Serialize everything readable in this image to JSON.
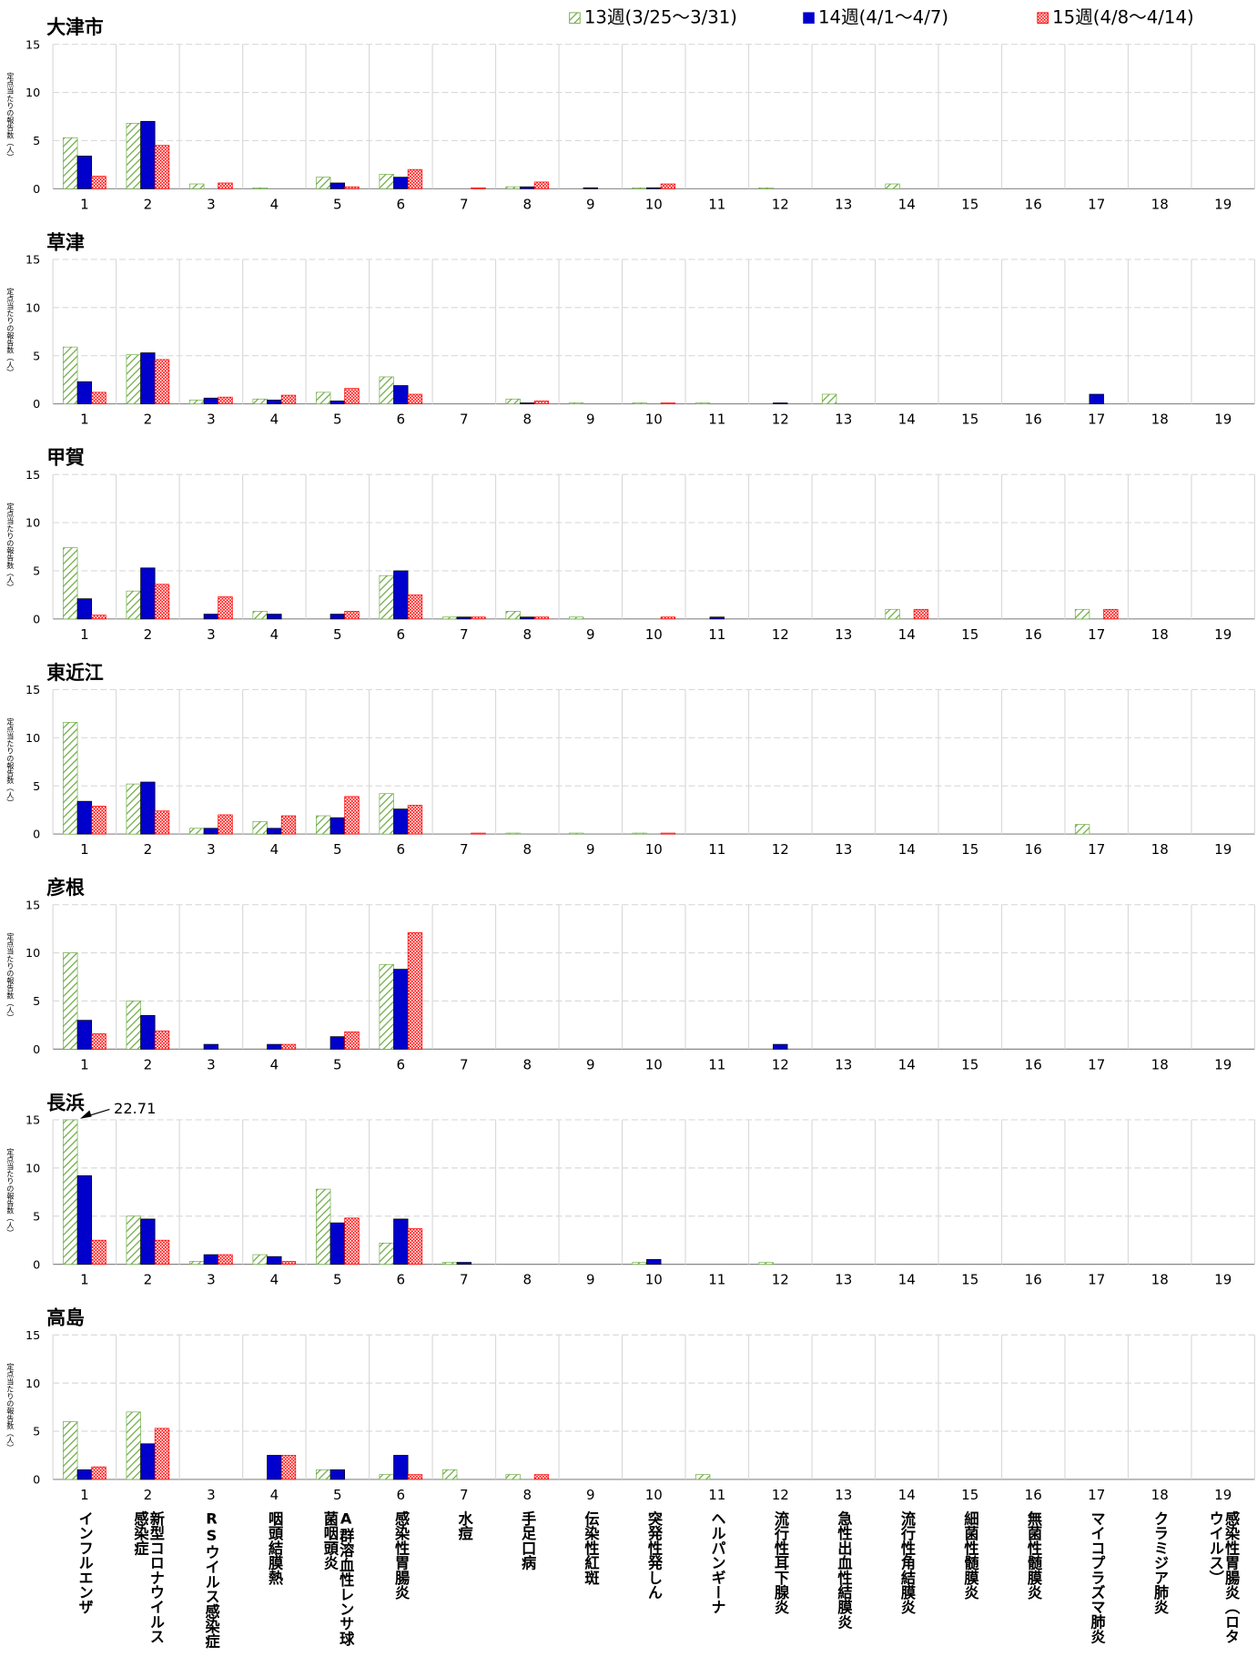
{
  "chart_data": [
    {
      "type": "bar",
      "title": "大津市",
      "y_label": "定点当たりの報告数（人）",
      "categories": [
        "1",
        "2",
        "3",
        "4",
        "5",
        "6",
        "7",
        "8",
        "9",
        "10",
        "11",
        "12",
        "13",
        "14",
        "15",
        "16",
        "17",
        "18",
        "19"
      ],
      "series": [
        {
          "name": "13週(3/25～3/31)",
          "color": "#70ad47",
          "pattern": "hatch",
          "values": [
            5.3,
            6.8,
            0.5,
            0.1,
            1.2,
            1.5,
            0,
            0.2,
            0,
            0.1,
            0,
            0.1,
            0,
            0.5,
            0,
            0,
            0,
            0,
            0
          ]
        },
        {
          "name": "14週(4/1～4/7)",
          "color": "#0000cc",
          "pattern": "solid",
          "values": [
            3.4,
            7.0,
            0,
            0,
            0.6,
            1.2,
            0,
            0.2,
            0.1,
            0.1,
            0,
            0,
            0,
            0,
            0,
            0,
            0,
            0,
            0
          ]
        },
        {
          "name": "15週(4/8～4/14)",
          "color": "#ff0000",
          "pattern": "check",
          "values": [
            1.3,
            4.5,
            0.6,
            0,
            0.2,
            2.0,
            0.1,
            0.7,
            0,
            0.5,
            0,
            0,
            0,
            0,
            0,
            0,
            0,
            0,
            0
          ]
        }
      ],
      "ylim": [
        0,
        15
      ],
      "yticks": [
        0,
        5,
        10,
        15
      ],
      "grid": true,
      "legend": "top"
    },
    {
      "type": "bar",
      "title": "草津",
      "y_label": "定点当たりの報告数（人）",
      "categories": [
        "1",
        "2",
        "3",
        "4",
        "5",
        "6",
        "7",
        "8",
        "9",
        "10",
        "11",
        "12",
        "13",
        "14",
        "15",
        "16",
        "17",
        "18",
        "19"
      ],
      "series": [
        {
          "values": [
            5.9,
            5.1,
            0.4,
            0.5,
            1.2,
            2.8,
            0,
            0.5,
            0.1,
            0.1,
            0.1,
            0,
            1.0,
            0,
            0,
            0,
            0,
            0,
            0
          ]
        },
        {
          "values": [
            2.3,
            5.3,
            0.6,
            0.4,
            0.3,
            1.9,
            0,
            0.1,
            0,
            0,
            0,
            0.1,
            0,
            0,
            0,
            0,
            1.0,
            0,
            0
          ]
        },
        {
          "values": [
            1.2,
            4.6,
            0.7,
            0.9,
            1.6,
            1.0,
            0,
            0.3,
            0,
            0.1,
            0,
            0,
            0,
            0,
            0,
            0,
            0,
            0,
            0
          ]
        }
      ],
      "ylim": [
        0,
        15
      ],
      "yticks": [
        0,
        5,
        10,
        15
      ],
      "grid": true
    },
    {
      "type": "bar",
      "title": "甲賀",
      "y_label": "定点当たりの報告数（人）",
      "categories": [
        "1",
        "2",
        "3",
        "4",
        "5",
        "6",
        "7",
        "8",
        "9",
        "10",
        "11",
        "12",
        "13",
        "14",
        "15",
        "16",
        "17",
        "18",
        "19"
      ],
      "series": [
        {
          "values": [
            7.4,
            2.9,
            0,
            0.8,
            0,
            4.5,
            0.2,
            0.8,
            0.2,
            0,
            0,
            0,
            0,
            1.0,
            0,
            0,
            1.0,
            0,
            0
          ]
        },
        {
          "values": [
            2.1,
            5.3,
            0.5,
            0.5,
            0.5,
            5.0,
            0.2,
            0.2,
            0,
            0,
            0.2,
            0,
            0,
            0,
            0,
            0,
            0,
            0,
            0
          ]
        },
        {
          "values": [
            0.4,
            3.6,
            2.3,
            0,
            0.8,
            2.5,
            0.2,
            0.2,
            0,
            0.2,
            0,
            0,
            0,
            1.0,
            0,
            0,
            1.0,
            0,
            0
          ]
        }
      ],
      "ylim": [
        0,
        15
      ],
      "yticks": [
        0,
        5,
        10,
        15
      ],
      "grid": true
    },
    {
      "type": "bar",
      "title": "東近江",
      "y_label": "定点当たりの報告数（人）",
      "categories": [
        "1",
        "2",
        "3",
        "4",
        "5",
        "6",
        "7",
        "8",
        "9",
        "10",
        "11",
        "12",
        "13",
        "14",
        "15",
        "16",
        "17",
        "18",
        "19"
      ],
      "series": [
        {
          "values": [
            11.6,
            5.2,
            0.6,
            1.3,
            1.9,
            4.2,
            0,
            0.1,
            0.1,
            0.1,
            0,
            0,
            0,
            0,
            0,
            0,
            1.0,
            0,
            0
          ]
        },
        {
          "values": [
            3.4,
            5.4,
            0.6,
            0.6,
            1.7,
            2.6,
            0,
            0,
            0,
            0,
            0,
            0,
            0,
            0,
            0,
            0,
            0,
            0,
            0
          ]
        },
        {
          "values": [
            2.9,
            2.4,
            2.0,
            1.9,
            3.9,
            3.0,
            0.1,
            0,
            0,
            0.1,
            0,
            0,
            0,
            0,
            0,
            0,
            0,
            0,
            0
          ]
        }
      ],
      "ylim": [
        0,
        15
      ],
      "yticks": [
        0,
        5,
        10,
        15
      ],
      "grid": true
    },
    {
      "type": "bar",
      "title": "彦根",
      "y_label": "定点当たりの報告数（人）",
      "categories": [
        "1",
        "2",
        "3",
        "4",
        "5",
        "6",
        "7",
        "8",
        "9",
        "10",
        "11",
        "12",
        "13",
        "14",
        "15",
        "16",
        "17",
        "18",
        "19"
      ],
      "series": [
        {
          "values": [
            10.0,
            5.0,
            0,
            0,
            0,
            8.8,
            0,
            0,
            0,
            0,
            0,
            0,
            0,
            0,
            0,
            0,
            0,
            0,
            0
          ]
        },
        {
          "values": [
            3.0,
            3.5,
            0.5,
            0.5,
            1.3,
            8.3,
            0,
            0,
            0,
            0,
            0,
            0.5,
            0,
            0,
            0,
            0,
            0,
            0,
            0
          ]
        },
        {
          "values": [
            1.6,
            1.9,
            0,
            0.5,
            1.8,
            12.1,
            0,
            0,
            0,
            0,
            0,
            0,
            0,
            0,
            0,
            0,
            0,
            0,
            0
          ]
        }
      ],
      "ylim": [
        0,
        15
      ],
      "yticks": [
        0,
        5,
        10,
        15
      ],
      "grid": true
    },
    {
      "type": "bar",
      "title": "長浜",
      "y_label": "定点当たりの報告数（人）",
      "categories": [
        "1",
        "2",
        "3",
        "4",
        "5",
        "6",
        "7",
        "8",
        "9",
        "10",
        "11",
        "12",
        "13",
        "14",
        "15",
        "16",
        "17",
        "18",
        "19"
      ],
      "series": [
        {
          "values": [
            22.71,
            5.0,
            0.3,
            1.0,
            7.8,
            2.2,
            0.2,
            0,
            0,
            0.2,
            0,
            0.2,
            0,
            0,
            0,
            0,
            0,
            0,
            0
          ],
          "value_labels": [
            "22.71",
            null,
            null,
            null,
            null,
            null,
            null,
            null,
            null,
            null,
            null,
            null,
            null,
            null,
            null,
            null,
            null,
            null,
            null
          ]
        },
        {
          "values": [
            9.2,
            4.7,
            1.0,
            0.8,
            4.3,
            4.7,
            0.2,
            0,
            0,
            0.5,
            0,
            0,
            0,
            0,
            0,
            0,
            0,
            0,
            0
          ]
        },
        {
          "values": [
            2.5,
            2.5,
            1.0,
            0.3,
            4.8,
            3.7,
            0,
            0,
            0,
            0,
            0,
            0,
            0,
            0,
            0,
            0,
            0,
            0,
            0
          ]
        }
      ],
      "ylim": [
        0,
        15
      ],
      "yticks": [
        0,
        5,
        10,
        15
      ],
      "grid": true
    },
    {
      "type": "bar",
      "title": "高島",
      "y_label": "定点当たりの報告数（人）",
      "categories": [
        "1",
        "2",
        "3",
        "4",
        "5",
        "6",
        "7",
        "8",
        "9",
        "10",
        "11",
        "12",
        "13",
        "14",
        "15",
        "16",
        "17",
        "18",
        "19"
      ],
      "category_names": [
        "インフルエンザ",
        "新型コロナウイルス感染症",
        "RSウイルス感染症",
        "咽頭結膜熱",
        "A群溶血性レンサ球菌咽頭炎",
        "感染性胃腸炎",
        "水痘",
        "手足口病",
        "伝染性紅斑",
        "突発性発しん",
        "ヘルパンギーナ",
        "流行性耳下腺炎",
        "急性出血性結膜炎",
        "流行性角結膜炎",
        "細菌性髄膜炎",
        "無菌性髄膜炎",
        "マイコプラズマ肺炎",
        "クラミジア肺炎",
        "感染性胃腸炎（ロタウイルス）"
      ],
      "series": [
        {
          "values": [
            6.0,
            7.0,
            0,
            0,
            1.0,
            0.5,
            1.0,
            0.5,
            0,
            0,
            0.5,
            0,
            0,
            0,
            0,
            0,
            0,
            0,
            0
          ]
        },
        {
          "values": [
            1.0,
            3.7,
            0,
            2.5,
            1.0,
            2.5,
            0,
            0,
            0,
            0,
            0,
            0,
            0,
            0,
            0,
            0,
            0,
            0,
            0
          ]
        },
        {
          "values": [
            1.3,
            5.3,
            0,
            2.5,
            0,
            0.5,
            0,
            0.5,
            0,
            0,
            0,
            0,
            0,
            0,
            0,
            0,
            0,
            0,
            0
          ]
        }
      ],
      "ylim": [
        0,
        15
      ],
      "yticks": [
        0,
        5,
        10,
        15
      ],
      "grid": true
    }
  ]
}
